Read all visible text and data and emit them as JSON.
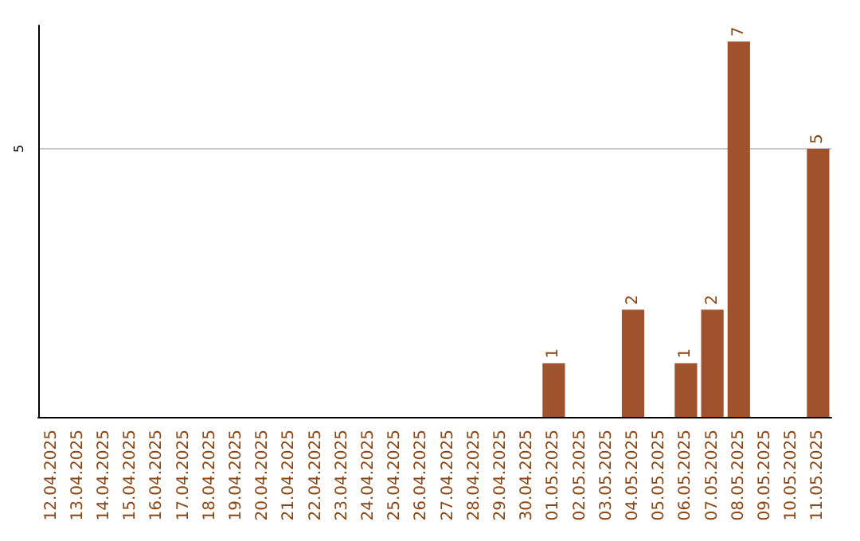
{
  "chart_data": {
    "type": "bar",
    "categories": [
      "12.04.2025",
      "13.04.2025",
      "14.04.2025",
      "15.04.2025",
      "16.04.2025",
      "17.04.2025",
      "18.04.2025",
      "19.04.2025",
      "20.04.2025",
      "21.04.2025",
      "22.04.2025",
      "23.04.2025",
      "24.04.2025",
      "25.04.2025",
      "26.04.2025",
      "27.04.2025",
      "28.04.2025",
      "29.04.2025",
      "30.04.2025",
      "01.05.2025",
      "02.05.2025",
      "03.05.2025",
      "04.05.2025",
      "05.05.2025",
      "06.05.2025",
      "07.05.2025",
      "08.05.2025",
      "09.05.2025",
      "10.05.2025",
      "11.05.2025"
    ],
    "values": [
      null,
      null,
      null,
      null,
      null,
      null,
      null,
      null,
      null,
      null,
      null,
      null,
      null,
      null,
      null,
      null,
      null,
      null,
      null,
      1,
      null,
      null,
      2,
      null,
      1,
      2,
      7,
      null,
      null,
      5
    ],
    "color": "#a0522d",
    "ylim": [
      0,
      7.3
    ],
    "yticks": [
      5
    ],
    "grid": "y",
    "data_labels": true
  }
}
